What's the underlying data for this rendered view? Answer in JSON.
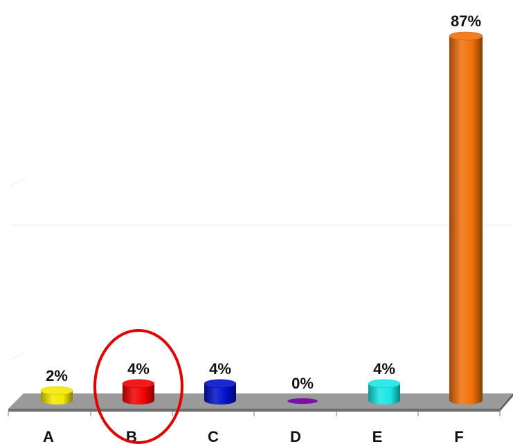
{
  "chart_data": {
    "type": "bar",
    "categories": [
      "A",
      "B",
      "C",
      "D",
      "E",
      "F"
    ],
    "values": [
      2,
      4,
      4,
      0,
      4,
      87
    ],
    "value_labels": [
      "2%",
      "4%",
      "4%",
      "0%",
      "4%",
      "87%"
    ],
    "colors": [
      "#f2ea00",
      "#f00000",
      "#0010c8",
      "#7a12a8",
      "#18e6e6",
      "#f07008"
    ],
    "unit": "%",
    "ylim": [
      0,
      100
    ],
    "grid": false,
    "highlighted_category": "B",
    "highlight_color": "#e00000"
  }
}
